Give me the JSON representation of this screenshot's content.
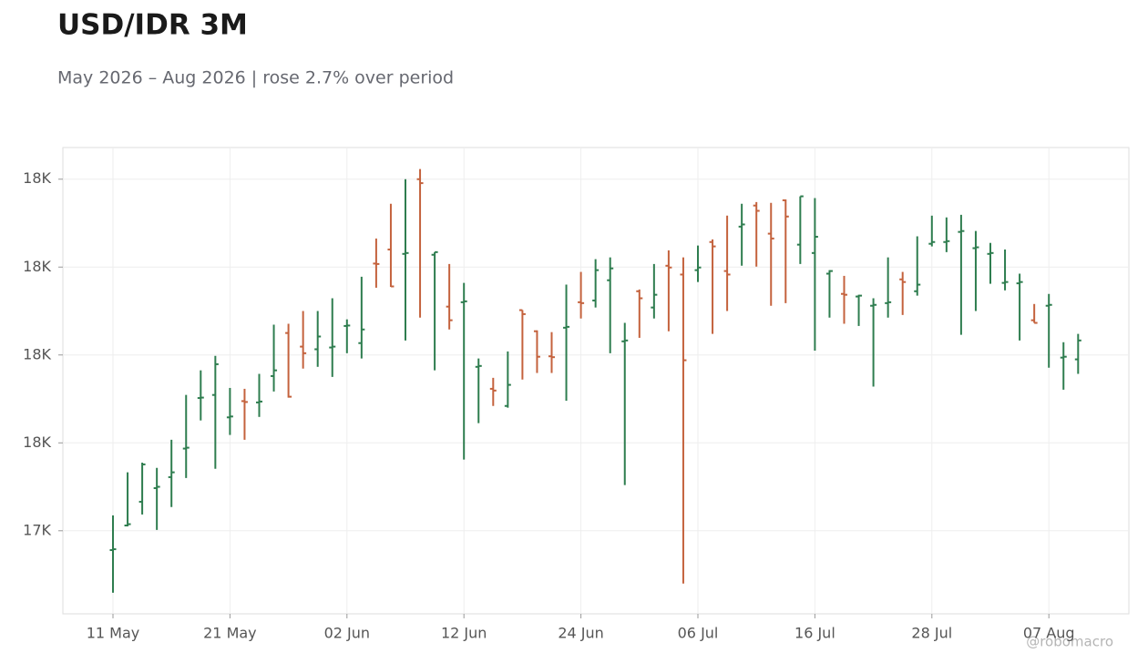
{
  "chart_data": {
    "type": "ohlc",
    "title": "USD/IDR 3M",
    "subtitle": "May 2026 – Aug 2026 | rose 2.7% over period",
    "watermark": "@robomacro",
    "up_color": "#2e7d4f",
    "down_color": "#c4623d",
    "grid": true,
    "categories": [
      "11 May",
      null,
      null,
      null,
      null,
      null,
      null,
      null,
      "21 May",
      null,
      null,
      null,
      null,
      null,
      null,
      null,
      "02 Jun",
      null,
      null,
      null,
      null,
      null,
      null,
      null,
      "12 Jun",
      null,
      null,
      null,
      null,
      null,
      null,
      null,
      "24 Jun",
      null,
      null,
      null,
      null,
      null,
      null,
      null,
      "06 Jul",
      null,
      null,
      null,
      null,
      null,
      null,
      null,
      "16 Jul",
      null,
      null,
      null,
      null,
      null,
      null,
      null,
      "28 Jul",
      null,
      null,
      null,
      null,
      null,
      null,
      null,
      "07 Aug",
      null,
      null
    ],
    "open": [
      17356,
      17412,
      17466,
      17497,
      17522,
      17587,
      17702,
      17709,
      17658,
      17695,
      17692,
      17752,
      17850,
      17819,
      17813,
      17817,
      17866,
      17827,
      18008,
      18040,
      18030,
      18200,
      18028,
      17910,
      17920,
      17773,
      17723,
      17684,
      17902,
      17854,
      17797,
      17862,
      17920,
      17924,
      17970,
      17831,
      17945,
      17908,
      18003,
      17983,
      17993,
      18057,
      17991,
      18092,
      18140,
      18076,
      18152,
      18051,
      18032,
      17985,
      17939,
      17933,
      17912,
      17918,
      17972,
      17945,
      18053,
      18057,
      18080,
      18043,
      18030,
      17964,
      17963,
      17879,
      17912,
      17794,
      17790
    ],
    "high": [
      17435,
      17533,
      17555,
      17543,
      17607,
      17709,
      17765,
      17798,
      17725,
      17723,
      17757,
      17869,
      17871,
      17900,
      17900,
      17929,
      17881,
      17978,
      18065,
      18144,
      18200,
      18223,
      18034,
      18007,
      17964,
      17792,
      17748,
      17808,
      17902,
      17856,
      17852,
      17960,
      17989,
      18018,
      18022,
      17873,
      17949,
      18007,
      18038,
      18022,
      18049,
      18063,
      18117,
      18144,
      18148,
      18146,
      18154,
      18161,
      18157,
      17993,
      17980,
      17937,
      17929,
      18022,
      17989,
      18070,
      18117,
      18113,
      18119,
      18082,
      18055,
      18040,
      17985,
      17916,
      17939,
      17829,
      17848
    ],
    "low": [
      17259,
      17410,
      17437,
      17402,
      17454,
      17520,
      17651,
      17541,
      17618,
      17607,
      17659,
      17717,
      17703,
      17769,
      17773,
      17750,
      17804,
      17792,
      17953,
      17955,
      17833,
      17885,
      17765,
      17858,
      17562,
      17645,
      17684,
      17680,
      17744,
      17759,
      17759,
      17696,
      17883,
      17908,
      17804,
      17504,
      17839,
      17883,
      17854,
      17280,
      17966,
      17848,
      17900,
      18003,
      18001,
      17912,
      17918,
      18007,
      17810,
      17885,
      17871,
      17866,
      17728,
      17885,
      17891,
      17935,
      18047,
      18034,
      17846,
      17900,
      17962,
      17947,
      17833,
      17873,
      17771,
      17721,
      17757
    ],
    "close": [
      17358,
      17415,
      17551,
      17500,
      17533,
      17589,
      17703,
      17779,
      17660,
      17693,
      17694,
      17765,
      17705,
      17804,
      17842,
      17819,
      17867,
      17858,
      18007,
      17956,
      18032,
      18191,
      18034,
      17879,
      17922,
      17775,
      17719,
      17732,
      17893,
      17796,
      17795,
      17864,
      17918,
      17993,
      17997,
      17833,
      17929,
      17937,
      17999,
      17788,
      17999,
      18047,
      17983,
      18097,
      18128,
      18065,
      18115,
      18161,
      18069,
      17991,
      17937,
      17935,
      17914,
      17920,
      17966,
      17960,
      18057,
      18059,
      18082,
      18045,
      18032,
      17966,
      17966,
      17873,
      17914,
      17796,
      17833
    ],
    "ylim": [
      17211,
      18272
    ],
    "yticks": [
      {
        "value": 17400,
        "label": "17K"
      },
      {
        "value": 17600,
        "label": "18K"
      },
      {
        "value": 17800,
        "label": "18K"
      },
      {
        "value": 18000,
        "label": "18K"
      },
      {
        "value": 18200,
        "label": "18K"
      }
    ]
  }
}
